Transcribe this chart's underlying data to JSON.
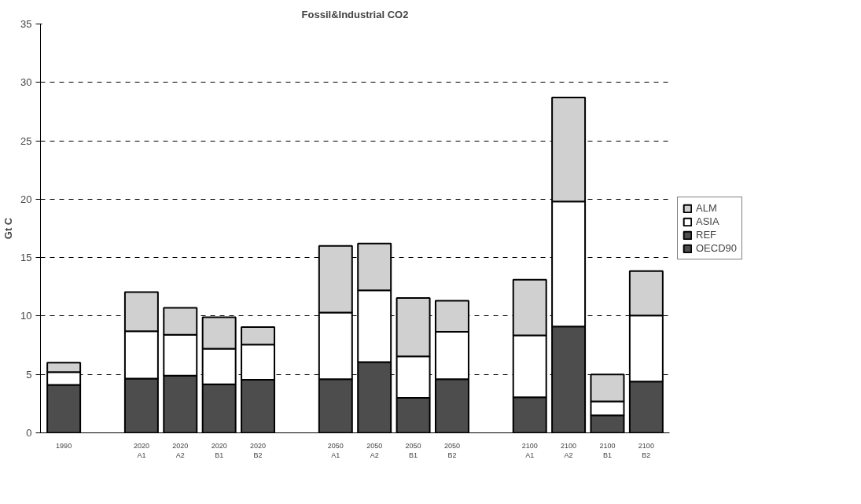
{
  "chart_data": {
    "type": "bar",
    "title": "Fossil&Industrial CO2",
    "ylabel": "Gt C",
    "stacked": true,
    "categories": [
      "1990",
      null,
      "2020\nA1",
      "2020\nA2",
      "2020\nB1",
      "2020\nB2",
      null,
      "2050\nA1",
      "2050\nA2",
      "2050\nB1",
      "2050\nB2",
      null,
      "2100\nA1",
      "2100\nA2",
      "2100\nB1",
      "2100\nB2"
    ],
    "series": [
      {
        "name": "OECD90",
        "color": "#4d4d4d",
        "values": [
          4.1,
          null,
          4.65,
          4.9,
          4.15,
          4.55,
          null,
          4.6,
          6.05,
          3.0,
          4.6,
          null,
          3.05,
          9.1,
          1.5,
          4.4
        ]
      },
      {
        "name": "REF",
        "color": "#4d4d4d",
        "values": [
          null,
          null,
          null,
          null,
          null,
          null,
          null,
          null,
          null,
          null,
          null,
          null,
          null,
          null,
          null,
          null
        ]
      },
      {
        "name": "ASIA",
        "color": "#ffffff",
        "values": [
          1.1,
          null,
          4.05,
          3.5,
          3.05,
          3.0,
          null,
          5.7,
          6.15,
          3.55,
          4.05,
          null,
          5.3,
          10.7,
          1.2,
          5.65
        ]
      },
      {
        "name": "ALM",
        "color": "#d0d0d0",
        "values": [
          0.8,
          null,
          3.35,
          2.3,
          2.7,
          1.5,
          null,
          5.7,
          4.0,
          5.0,
          2.65,
          null,
          4.75,
          8.9,
          2.3,
          3.8
        ]
      }
    ],
    "ylim": [
      0,
      35
    ],
    "yticks": [
      0,
      5,
      10,
      15,
      20,
      25,
      30,
      35
    ],
    "grid": "y",
    "legend": "right"
  }
}
